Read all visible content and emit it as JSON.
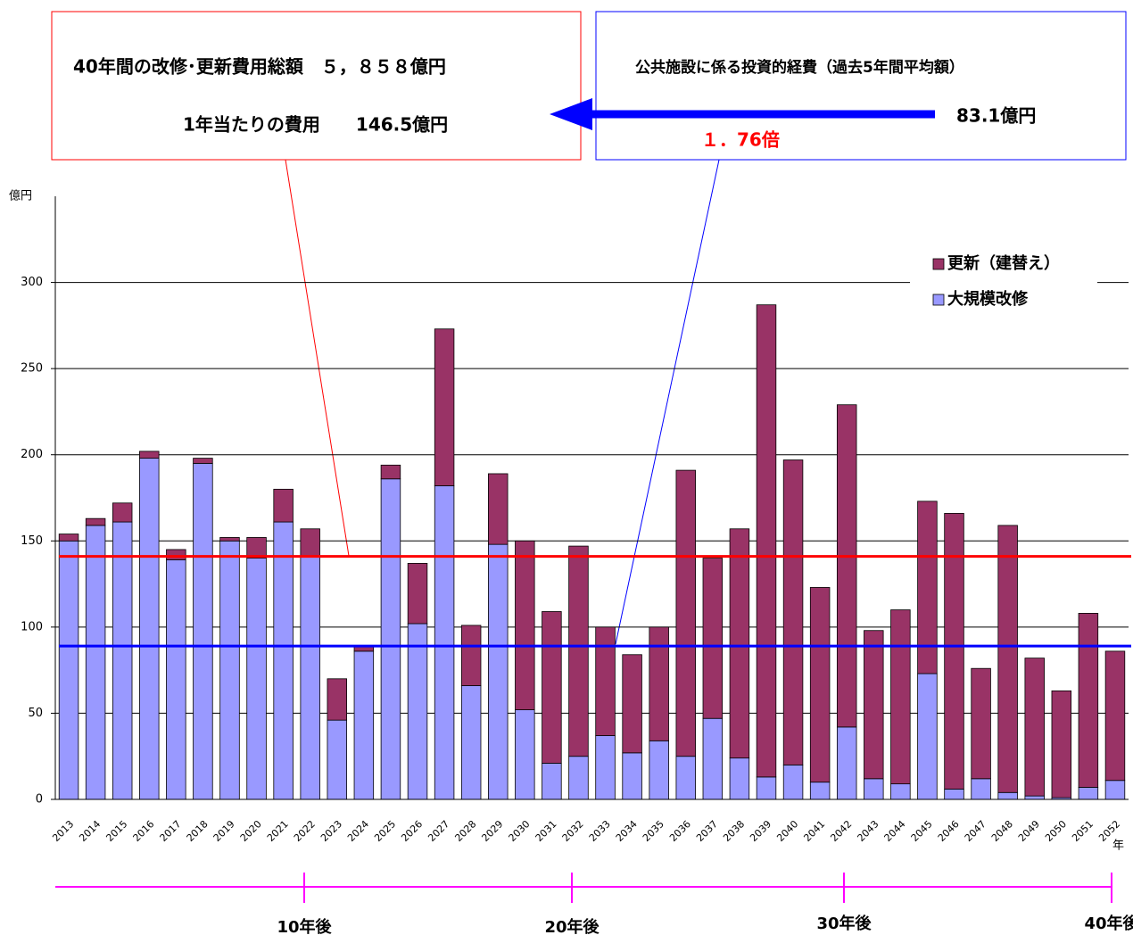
{
  "chart_data": {
    "type": "stacked_bar",
    "y_unit": "億円",
    "x_unit": "年",
    "categories": [
      "2013",
      "2014",
      "2015",
      "2016",
      "2017",
      "2018",
      "2019",
      "2020",
      "2021",
      "2022",
      "2023",
      "2024",
      "2025",
      "2026",
      "2027",
      "2028",
      "2029",
      "2030",
      "2031",
      "2032",
      "2033",
      "2034",
      "2035",
      "2036",
      "2037",
      "2038",
      "2039",
      "2040",
      "2041",
      "2042",
      "2043",
      "2044",
      "2045",
      "2046",
      "2047",
      "2048",
      "2049",
      "2050",
      "2051",
      "2052"
    ],
    "series": [
      {
        "name": "大規模改修",
        "color": "#9999ff",
        "values": [
          150,
          159,
          161,
          198,
          139,
          195,
          150,
          140,
          161,
          141,
          46,
          86,
          186,
          102,
          182,
          66,
          148,
          52,
          21,
          25,
          37,
          27,
          34,
          25,
          47,
          24,
          13,
          20,
          10,
          42,
          12,
          9,
          73,
          6,
          12,
          4,
          2,
          1,
          7,
          11
        ]
      },
      {
        "name": "更新（建替え）",
        "color": "#993366",
        "values": [
          4,
          4,
          11,
          4,
          6,
          3,
          2,
          12,
          19,
          16,
          24,
          3,
          8,
          35,
          91,
          35,
          41,
          98,
          88,
          122,
          63,
          57,
          66,
          166,
          93,
          133,
          274,
          177,
          113,
          187,
          86,
          101,
          100,
          160,
          64,
          155,
          80,
          62,
          101,
          75
        ]
      }
    ],
    "ylim": [
      0,
      350
    ],
    "yticks": [
      0,
      50,
      100,
      150,
      200,
      250,
      300
    ],
    "grid": true,
    "legend": "top-right",
    "reference_lines": [
      {
        "value": 141,
        "color": "#ff0000"
      },
      {
        "value": 89,
        "color": "#0000ff"
      }
    ],
    "annotations": {
      "total_line1": "40年間の改修･更新費用総額　５，８５８億円",
      "total_line2": "1年当たりの費用　　146.5億円",
      "invest_line1": "公共施設に係る投資的経費（過去5年間平均額）",
      "invest_line2": "83.1億円",
      "ratio": "１．76倍"
    },
    "timeline_labels": [
      "10年後",
      "20年後",
      "30年後",
      "40年後"
    ]
  }
}
